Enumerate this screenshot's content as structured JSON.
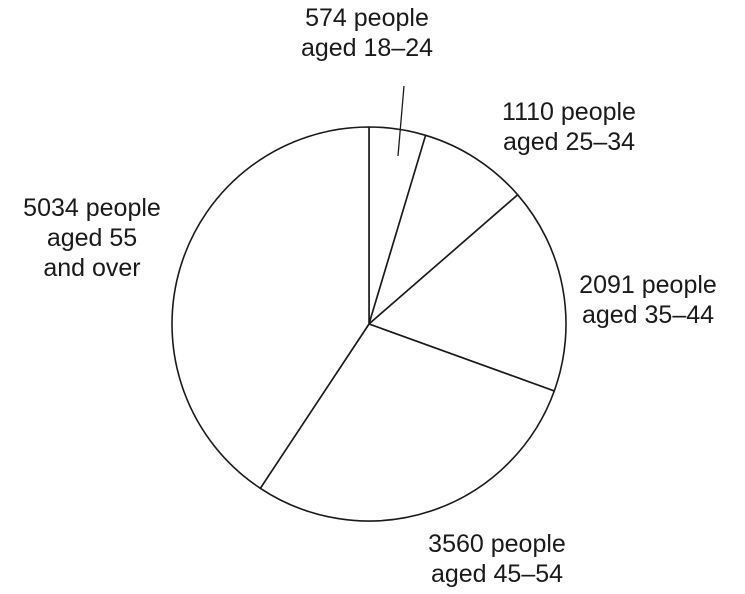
{
  "chart_data": {
    "type": "pie",
    "title": "",
    "categories": [
      "18–24",
      "25–34",
      "35–44",
      "45–54",
      "55 and over"
    ],
    "values": [
      574,
      1110,
      2091,
      3560,
      5034
    ],
    "unit": "people",
    "start_angle": "12 o'clock",
    "direction": "clockwise",
    "legend": "none",
    "labels": [
      {
        "lines": [
          "574 people",
          "aged 18–24"
        ]
      },
      {
        "lines": [
          "1110 people",
          "aged 25–34"
        ]
      },
      {
        "lines": [
          "2091 people",
          "aged 35–44"
        ]
      },
      {
        "lines": [
          "3560 people",
          "aged 45–54"
        ]
      },
      {
        "lines": [
          "5034 people",
          "aged 55",
          "and over"
        ]
      }
    ],
    "colors": {
      "fill": "#ffffff",
      "stroke": "#1a1a1a",
      "text": "#1a1a1a"
    }
  }
}
